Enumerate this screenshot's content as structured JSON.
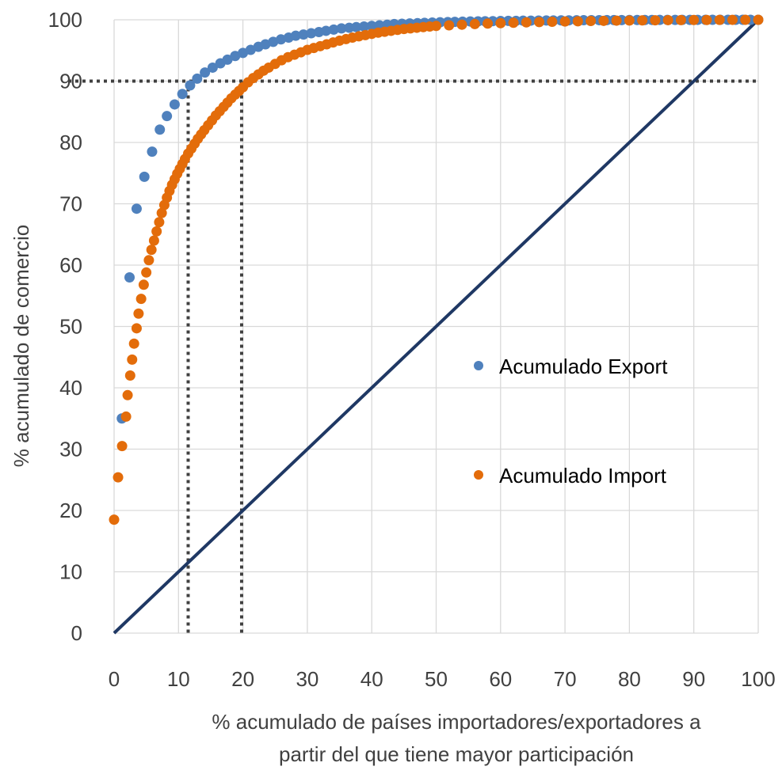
{
  "chart_data": {
    "type": "scatter",
    "title": "",
    "xlabel": [
      "% acumulado de países importadores/exportadores a",
      "partir del que tiene mayor participación"
    ],
    "ylabel": "% acumulado de comercio",
    "xlim": [
      0,
      100
    ],
    "ylim": [
      0,
      100
    ],
    "xticks": [
      "0",
      "10",
      "20",
      "30",
      "40",
      "50",
      "60",
      "70",
      "80",
      "90",
      "100"
    ],
    "yticks": [
      "0",
      "10",
      "20",
      "30",
      "40",
      "50",
      "60",
      "70",
      "80",
      "90",
      "100"
    ],
    "grid": true,
    "legend_position": "right-middle",
    "series": [
      {
        "name": "Acumulado Export",
        "color": "#4f81bd",
        "points": [
          [
            1.2,
            35.0
          ],
          [
            2.4,
            58.0
          ],
          [
            3.5,
            69.2
          ],
          [
            4.7,
            74.4
          ],
          [
            5.9,
            78.5
          ],
          [
            7.1,
            82.1
          ],
          [
            8.2,
            84.3
          ],
          [
            9.4,
            86.2
          ],
          [
            10.6,
            87.9
          ],
          [
            11.8,
            89.3
          ],
          [
            12.9,
            90.4
          ],
          [
            14.1,
            91.4
          ],
          [
            15.3,
            92.2
          ],
          [
            16.5,
            92.9
          ],
          [
            17.6,
            93.5
          ],
          [
            18.8,
            94.1
          ],
          [
            20,
            94.6
          ],
          [
            21.2,
            95.1
          ],
          [
            22.4,
            95.6
          ],
          [
            23.5,
            96.0
          ],
          [
            24.7,
            96.4
          ],
          [
            25.9,
            96.8
          ],
          [
            27.1,
            97.1
          ],
          [
            28.2,
            97.4
          ],
          [
            29.4,
            97.6
          ],
          [
            30.6,
            97.8
          ],
          [
            31.8,
            98.0
          ],
          [
            32.9,
            98.2
          ],
          [
            34.1,
            98.4
          ],
          [
            35.3,
            98.6
          ],
          [
            36.5,
            98.7
          ],
          [
            37.6,
            98.8
          ],
          [
            38.8,
            98.9
          ],
          [
            40,
            99.0
          ],
          [
            41.2,
            99.1
          ],
          [
            42.4,
            99.2
          ],
          [
            43.5,
            99.3
          ],
          [
            44.7,
            99.35
          ],
          [
            45.9,
            99.4
          ],
          [
            47.1,
            99.45
          ],
          [
            48.2,
            99.5
          ],
          [
            49.4,
            99.55
          ],
          [
            50.6,
            99.6
          ],
          [
            51.8,
            99.63
          ],
          [
            52.9,
            99.66
          ],
          [
            54.1,
            99.7
          ],
          [
            55.3,
            99.72
          ],
          [
            56.5,
            99.74
          ],
          [
            57.6,
            99.76
          ],
          [
            58.8,
            99.78
          ],
          [
            60,
            99.8
          ],
          [
            61.2,
            99.82
          ],
          [
            62.4,
            99.83
          ],
          [
            63.5,
            99.85
          ],
          [
            64.7,
            99.86
          ],
          [
            65.9,
            99.87
          ],
          [
            67.1,
            99.88
          ],
          [
            68.2,
            99.89
          ],
          [
            69.4,
            99.9
          ],
          [
            70.6,
            99.91
          ],
          [
            71.8,
            99.92
          ],
          [
            72.9,
            99.93
          ],
          [
            74.1,
            99.935
          ],
          [
            75.3,
            99.94
          ],
          [
            76.5,
            99.945
          ],
          [
            77.6,
            99.95
          ],
          [
            78.8,
            99.955
          ],
          [
            80,
            99.96
          ],
          [
            81.2,
            99.965
          ],
          [
            82.4,
            99.97
          ],
          [
            83.5,
            99.973
          ],
          [
            84.7,
            99.976
          ],
          [
            85.9,
            99.979
          ],
          [
            87.1,
            99.982
          ],
          [
            88.2,
            99.985
          ],
          [
            89.4,
            99.987
          ],
          [
            90.6,
            99.99
          ],
          [
            91.8,
            99.992
          ],
          [
            92.9,
            99.994
          ],
          [
            94.1,
            99.996
          ],
          [
            95.3,
            99.997
          ],
          [
            96.5,
            99.998
          ],
          [
            97.6,
            99.999
          ],
          [
            98.8,
            99.9995
          ],
          [
            100,
            100
          ]
        ]
      },
      {
        "name": "Acumulado Import",
        "color": "#e36c0a",
        "points": [
          [
            0.0,
            18.5
          ],
          [
            0.62,
            25.4
          ],
          [
            1.24,
            30.5
          ],
          [
            1.86,
            35.3
          ],
          [
            2.1,
            38.8
          ],
          [
            2.5,
            42.0
          ],
          [
            2.8,
            44.6
          ],
          [
            3.1,
            47.2
          ],
          [
            3.5,
            49.7
          ],
          [
            3.8,
            52.1
          ],
          [
            4.2,
            54.5
          ],
          [
            4.6,
            56.8
          ],
          [
            5.0,
            58.8
          ],
          [
            5.4,
            60.8
          ],
          [
            5.8,
            62.5
          ],
          [
            6.2,
            64.0
          ],
          [
            6.6,
            65.5
          ],
          [
            7.0,
            67.0
          ],
          [
            7.4,
            68.5
          ],
          [
            7.8,
            69.8
          ],
          [
            8.2,
            71.0
          ],
          [
            8.6,
            72.1
          ],
          [
            9.0,
            73.1
          ],
          [
            9.4,
            74.0
          ],
          [
            9.8,
            74.9
          ],
          [
            10.2,
            75.7
          ],
          [
            10.6,
            76.5
          ],
          [
            11.0,
            77.3
          ],
          [
            11.5,
            78.2
          ],
          [
            12.0,
            79.0
          ],
          [
            12.5,
            79.8
          ],
          [
            13.0,
            80.6
          ],
          [
            13.5,
            81.3
          ],
          [
            14.0,
            82.0
          ],
          [
            14.6,
            82.8
          ],
          [
            15.2,
            83.6
          ],
          [
            15.8,
            84.4
          ],
          [
            16.4,
            85.1
          ],
          [
            17.0,
            85.8
          ],
          [
            17.6,
            86.5
          ],
          [
            18.2,
            87.2
          ],
          [
            18.8,
            87.8
          ],
          [
            19.4,
            88.4
          ],
          [
            20.0,
            89.0
          ],
          [
            20.8,
            89.8
          ],
          [
            21.6,
            90.5
          ],
          [
            22.4,
            91.1
          ],
          [
            23.2,
            91.7
          ],
          [
            24.0,
            92.2
          ],
          [
            25.0,
            92.8
          ],
          [
            26.0,
            93.4
          ],
          [
            27.0,
            93.9
          ],
          [
            28.0,
            94.3
          ],
          [
            29.0,
            94.7
          ],
          [
            30.0,
            95.1
          ],
          [
            31.0,
            95.4
          ],
          [
            32.0,
            95.7
          ],
          [
            33.0,
            96.0
          ],
          [
            34.0,
            96.3
          ],
          [
            35.0,
            96.6
          ],
          [
            36.0,
            96.85
          ],
          [
            37.0,
            97.1
          ],
          [
            38.0,
            97.3
          ],
          [
            39.0,
            97.5
          ],
          [
            40.0,
            97.7
          ],
          [
            41.0,
            97.9
          ],
          [
            42.0,
            98.05
          ],
          [
            43.0,
            98.2
          ],
          [
            44.0,
            98.35
          ],
          [
            45.0,
            98.5
          ],
          [
            46.0,
            98.6
          ],
          [
            47.0,
            98.7
          ],
          [
            48.0,
            98.8
          ],
          [
            49.0,
            98.9
          ],
          [
            50.0,
            99.0
          ],
          [
            52.0,
            99.1
          ],
          [
            54.0,
            99.2
          ],
          [
            56.0,
            99.3
          ],
          [
            58.0,
            99.38
          ],
          [
            60.0,
            99.45
          ],
          [
            62.0,
            99.52
          ],
          [
            64.0,
            99.58
          ],
          [
            66.0,
            99.63
          ],
          [
            68.0,
            99.68
          ],
          [
            70.0,
            99.72
          ],
          [
            72.0,
            99.76
          ],
          [
            74.0,
            99.8
          ],
          [
            76.0,
            99.83
          ],
          [
            78.0,
            99.86
          ],
          [
            80.0,
            99.88
          ],
          [
            82.0,
            99.9
          ],
          [
            84.0,
            99.92
          ],
          [
            86.0,
            99.94
          ],
          [
            88.0,
            99.95
          ],
          [
            90.0,
            99.96
          ],
          [
            92.0,
            99.97
          ],
          [
            94.0,
            99.98
          ],
          [
            96.0,
            99.99
          ],
          [
            98.0,
            99.995
          ],
          [
            100.0,
            100.0
          ]
        ]
      }
    ],
    "diagonal_line": {
      "from": [
        0,
        0
      ],
      "to": [
        100,
        100
      ],
      "color": "#1f3864"
    },
    "reference_lines": [
      {
        "orientation": "horizontal",
        "value": 90,
        "style": "dotted",
        "color": "#404040"
      },
      {
        "orientation": "vertical",
        "value": 11.5,
        "style": "dotted",
        "color": "#404040"
      },
      {
        "orientation": "vertical",
        "value": 19.8,
        "style": "dotted",
        "color": "#404040"
      }
    ]
  }
}
